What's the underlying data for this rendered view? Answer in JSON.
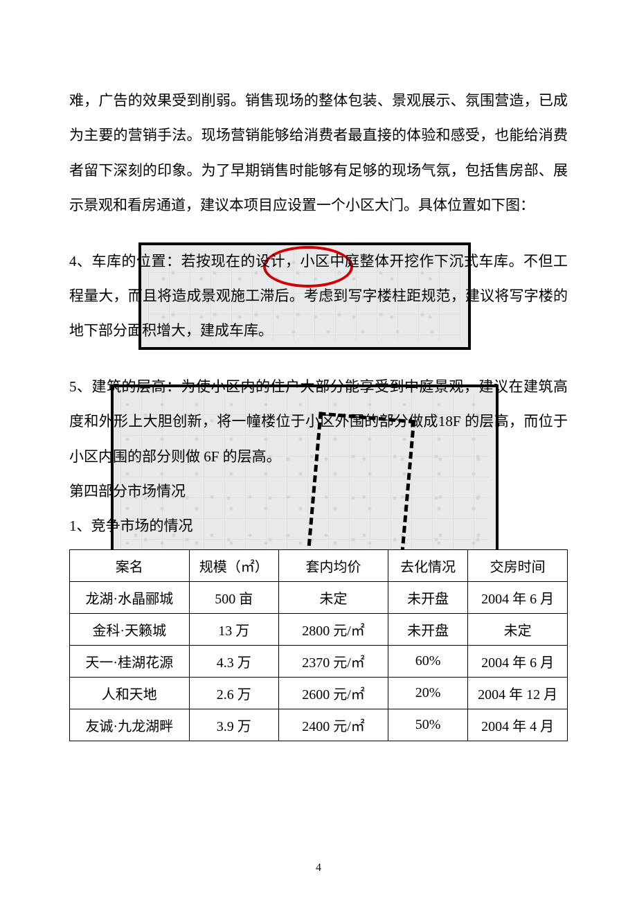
{
  "text_color": "#000000",
  "background_color": "#ffffff",
  "border_color": "#000000",
  "red_oval_color": "#d00000",
  "image_bg_color": "#e8e9ea",
  "body_fontsize": 21,
  "body_line_height": 2.4,
  "table_fontsize": 20,
  "pagenum_fontsize": 16,
  "intro": "难，广告的效果受到削弱。销售现场的整体包装、景观展示、氛围营造，已成为主要的营销手法。现场营销能够给消费者最直接的体验和感受，也能给消费者留下深刻的印象。为了早期销售时能够有足够的现场气氛，包括售房部、展示景观和看房通道，建议本项目应设置一个小区大门。具体位置如下图：",
  "para4": "4、车库的位置：若按现在的设计，小区中庭整体开挖作下沉式车库。不但工程量大，而且将造成景观施工滞后。考虑到写字楼柱距规范，建议将写字楼的地下部分面积增大，建成车库。",
  "para5": "5、建筑的层高：为使小区内的住户大部分能享受到中庭景观，建议在建筑高度和外形上大胆创新，将一幢楼位于小区外围的部分做成18F 的层高，而位于小区内围的部分则做 6F 的层高。",
  "sec4_title": "第四部分市场情况",
  "sec4_sub1": "1、竞争市场的情况",
  "table": {
    "type": "table",
    "columns": [
      "案名",
      "规模（㎡）",
      "套内均价",
      "去化情况",
      "交房时间"
    ],
    "col_widths": [
      "24%",
      "18%",
      "22%",
      "16%",
      "20%"
    ],
    "rows": [
      [
        "龙湖·水晶郦城",
        "500 亩",
        "未定",
        "未开盘",
        "2004 年 6 月"
      ],
      [
        "金科·天籁城",
        "13 万",
        "2800 元/㎡",
        "未开盘",
        "未定"
      ],
      [
        "天一·桂湖花源",
        "4.3 万",
        "2370 元/㎡",
        "60%",
        "2004 年 6 月"
      ],
      [
        "人和天地",
        "2.6 万",
        "2600 元/㎡",
        "20%",
        "2004 年 12 月"
      ],
      [
        "友诚·九龙湖畔",
        "3.9 万",
        "2400 元/㎡",
        "50%",
        "2004 年 4 月"
      ]
    ]
  },
  "page_number": "4"
}
